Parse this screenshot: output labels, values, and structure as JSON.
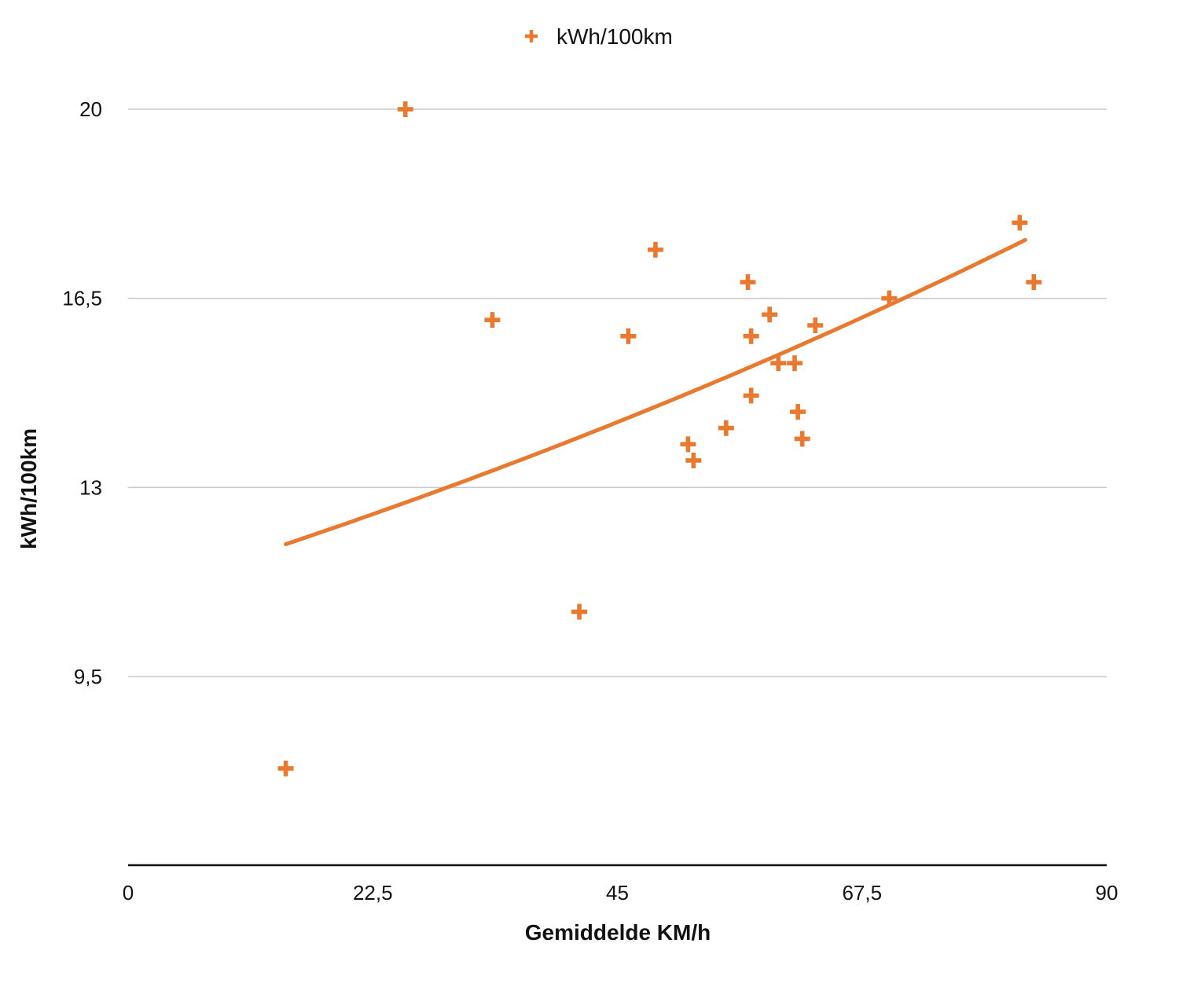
{
  "chart_data": {
    "type": "scatter",
    "title": "",
    "xlabel": "Gemiddelde KM/h",
    "ylabel": "kWh/100km",
    "xlim": [
      0,
      90
    ],
    "ylim": [
      6.5,
      20
    ],
    "x_ticks": [
      "0",
      "22,5",
      "45",
      "67,5",
      "90"
    ],
    "x_tick_values": [
      0,
      22.5,
      45,
      67.5,
      90
    ],
    "y_ticks": [
      "9,5",
      "13",
      "16,5",
      "20"
    ],
    "y_tick_values": [
      9.5,
      13,
      16.5,
      20
    ],
    "grid": true,
    "legend_position": "top-center",
    "series": [
      {
        "name": "kWh/100km",
        "color": "#e8792e",
        "marker": "plus",
        "points": [
          [
            14.5,
            7.8
          ],
          [
            25.5,
            20.0
          ],
          [
            33.5,
            16.1
          ],
          [
            41.5,
            10.7
          ],
          [
            46.0,
            15.8
          ],
          [
            48.5,
            17.4
          ],
          [
            51.5,
            13.8
          ],
          [
            52.0,
            13.5
          ],
          [
            55.0,
            14.1
          ],
          [
            57.0,
            16.8
          ],
          [
            57.3,
            15.8
          ],
          [
            57.3,
            14.7
          ],
          [
            59.0,
            16.2
          ],
          [
            59.8,
            15.3
          ],
          [
            61.3,
            15.3
          ],
          [
            61.6,
            14.4
          ],
          [
            62.0,
            13.9
          ],
          [
            63.2,
            16.0
          ],
          [
            70.0,
            16.5
          ],
          [
            82.0,
            17.9
          ],
          [
            83.3,
            16.8
          ]
        ]
      }
    ],
    "trendline": {
      "type": "exponential",
      "color": "#e8792e",
      "x_start": 14.5,
      "x_end": 82.5,
      "points": [
        [
          14.5,
          11.95
        ],
        [
          25.0,
          12.58
        ],
        [
          35.0,
          13.33
        ],
        [
          45.0,
          14.13
        ],
        [
          55.0,
          14.98
        ],
        [
          65.0,
          15.88
        ],
        [
          75.0,
          16.83
        ],
        [
          82.5,
          17.58
        ]
      ]
    }
  }
}
